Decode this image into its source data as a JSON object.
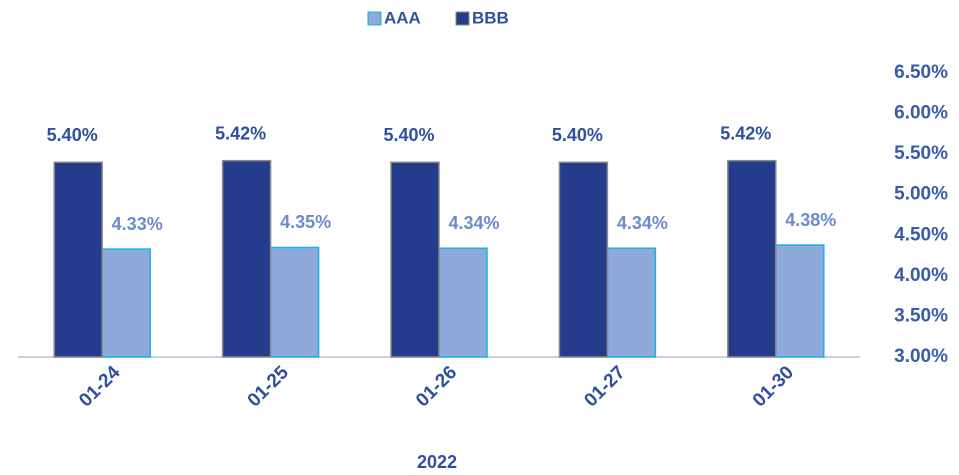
{
  "chart_data": {
    "type": "bar",
    "categories": [
      "01-24",
      "01-25",
      "01-26",
      "01-27",
      "01-30"
    ],
    "series": [
      {
        "name": "AAA",
        "color": "#8eaadb",
        "values": [
          4.33,
          4.35,
          4.34,
          4.34,
          4.38
        ],
        "value_labels": [
          "4.33%",
          "4.35%",
          "4.34%",
          "4.34%",
          "4.38%"
        ]
      },
      {
        "name": "BBB",
        "color": "#253c8c",
        "values": [
          5.4,
          5.42,
          5.4,
          5.4,
          5.42
        ],
        "value_labels": [
          "5.40%",
          "5.42%",
          "5.40%",
          "5.40%",
          "5.42%"
        ]
      }
    ],
    "xlabel": "2022",
    "ylim": [
      3,
      6.5
    ],
    "yticks": [
      {
        "value": 3,
        "label": "3.00%"
      },
      {
        "value": 3.5,
        "label": "3.50%"
      },
      {
        "value": 4,
        "label": "4.00%"
      },
      {
        "value": 4.5,
        "label": "4.50%"
      },
      {
        "value": 5,
        "label": "5.00%"
      },
      {
        "value": 5.5,
        "label": "5.50%"
      },
      {
        "value": 6,
        "label": "6.00%"
      },
      {
        "value": 6.5,
        "label": "6.50%"
      }
    ],
    "legend": "top"
  }
}
